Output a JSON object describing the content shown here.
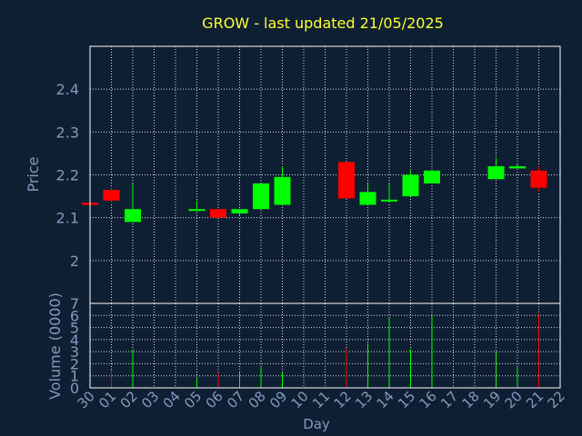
{
  "chart_data": {
    "type": "candlestick",
    "title": "GROW - last updated 21/05/2025",
    "xlabel": "Day",
    "price_label": "Price",
    "volume_label": "Volume (0000)",
    "x_ticks": [
      "30",
      "01",
      "02",
      "03",
      "04",
      "05",
      "06",
      "07",
      "08",
      "09",
      "10",
      "11",
      "12",
      "13",
      "14",
      "15",
      "16",
      "17",
      "18",
      "19",
      "20",
      "21",
      "22"
    ],
    "price_ticks": [
      "2",
      "2.1",
      "2.2",
      "2.3",
      "2.4"
    ],
    "price_tick_values": [
      2.0,
      2.1,
      2.2,
      2.3,
      2.4
    ],
    "volume_ticks": [
      "0",
      "1",
      "2",
      "3",
      "4",
      "5",
      "6",
      "7"
    ],
    "volume_tick_values": [
      0,
      1,
      2,
      3,
      4,
      5,
      6,
      7
    ],
    "price_ylim": [
      1.9,
      2.5
    ],
    "volume_ylim": [
      0,
      7
    ],
    "grid": true,
    "colors": {
      "background": "#0f1f33",
      "up": "#00ff00",
      "down": "#ff0000",
      "grid": "#ffffff",
      "title": "#ffff33",
      "text": "#7f9bbf"
    },
    "series": [
      {
        "day": "30",
        "open": 2.135,
        "high": 2.135,
        "low": 2.13,
        "close": 2.13,
        "volume": 0.0
      },
      {
        "day": "01",
        "open": 2.165,
        "high": 2.17,
        "low": 2.135,
        "close": 2.14,
        "volume": 1.5
      },
      {
        "day": "02",
        "open": 2.09,
        "high": 2.18,
        "low": 2.09,
        "close": 2.12,
        "volume": 3.2
      },
      {
        "day": "05",
        "open": 2.118,
        "high": 2.14,
        "low": 2.115,
        "close": 2.12,
        "volume": 0.8
      },
      {
        "day": "06",
        "open": 2.12,
        "high": 2.12,
        "low": 2.1,
        "close": 2.1,
        "volume": 1.3
      },
      {
        "day": "07",
        "open": 2.11,
        "high": 2.12,
        "low": 2.105,
        "close": 2.12,
        "volume": 1.3
      },
      {
        "day": "08",
        "open": 2.12,
        "high": 2.18,
        "low": 2.12,
        "close": 2.18,
        "volume": 1.7
      },
      {
        "day": "09",
        "open": 2.13,
        "high": 2.22,
        "low": 2.13,
        "close": 2.195,
        "volume": 1.3
      },
      {
        "day": "12",
        "open": 2.23,
        "high": 2.23,
        "low": 2.145,
        "close": 2.145,
        "volume": 3.3
      },
      {
        "day": "13",
        "open": 2.13,
        "high": 2.18,
        "low": 2.13,
        "close": 2.16,
        "volume": 3.7
      },
      {
        "day": "14",
        "open": 2.14,
        "high": 2.18,
        "low": 2.135,
        "close": 2.142,
        "volume": 5.8
      },
      {
        "day": "15",
        "open": 2.15,
        "high": 2.21,
        "low": 2.15,
        "close": 2.2,
        "volume": 3.2
      },
      {
        "day": "16",
        "open": 2.18,
        "high": 2.21,
        "low": 2.18,
        "close": 2.21,
        "volume": 6.0
      },
      {
        "day": "19",
        "open": 2.19,
        "high": 2.24,
        "low": 2.19,
        "close": 2.22,
        "volume": 3.0
      },
      {
        "day": "20",
        "open": 2.215,
        "high": 2.225,
        "low": 2.215,
        "close": 2.22,
        "volume": 1.7
      },
      {
        "day": "21",
        "open": 2.21,
        "high": 2.22,
        "low": 2.16,
        "close": 2.17,
        "volume": 6.1
      }
    ]
  }
}
